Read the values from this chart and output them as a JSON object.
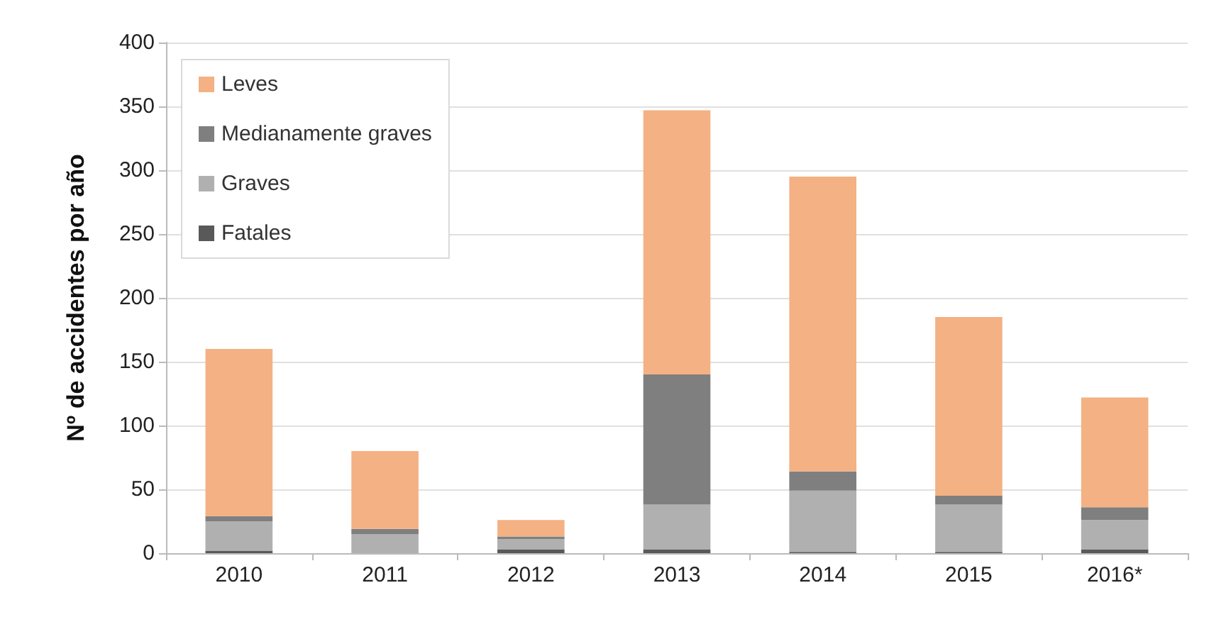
{
  "chart_data": {
    "type": "bar",
    "stacked": true,
    "ylabel": "Nº de accidentes por año",
    "categories": [
      "2010",
      "2011",
      "2012",
      "2013",
      "2014",
      "2015",
      "2016*"
    ],
    "series": [
      {
        "name": "Fatales",
        "color": "#595959",
        "values": [
          2,
          0,
          3,
          3,
          1,
          1,
          3
        ]
      },
      {
        "name": "Graves",
        "color": "#b0b0b0",
        "values": [
          23,
          15,
          8,
          35,
          48,
          37,
          23
        ]
      },
      {
        "name": "Medianamente graves",
        "color": "#7f7f7f",
        "values": [
          4,
          4,
          2,
          102,
          15,
          7,
          10
        ]
      },
      {
        "name": "Leves",
        "color": "#f4b183",
        "values": [
          131,
          61,
          13,
          207,
          231,
          140,
          86
        ]
      }
    ],
    "ylim": [
      0,
      400
    ],
    "yticks": [
      0,
      50,
      100,
      150,
      200,
      250,
      300,
      350,
      400
    ],
    "grid": "y",
    "legend": "top left"
  }
}
